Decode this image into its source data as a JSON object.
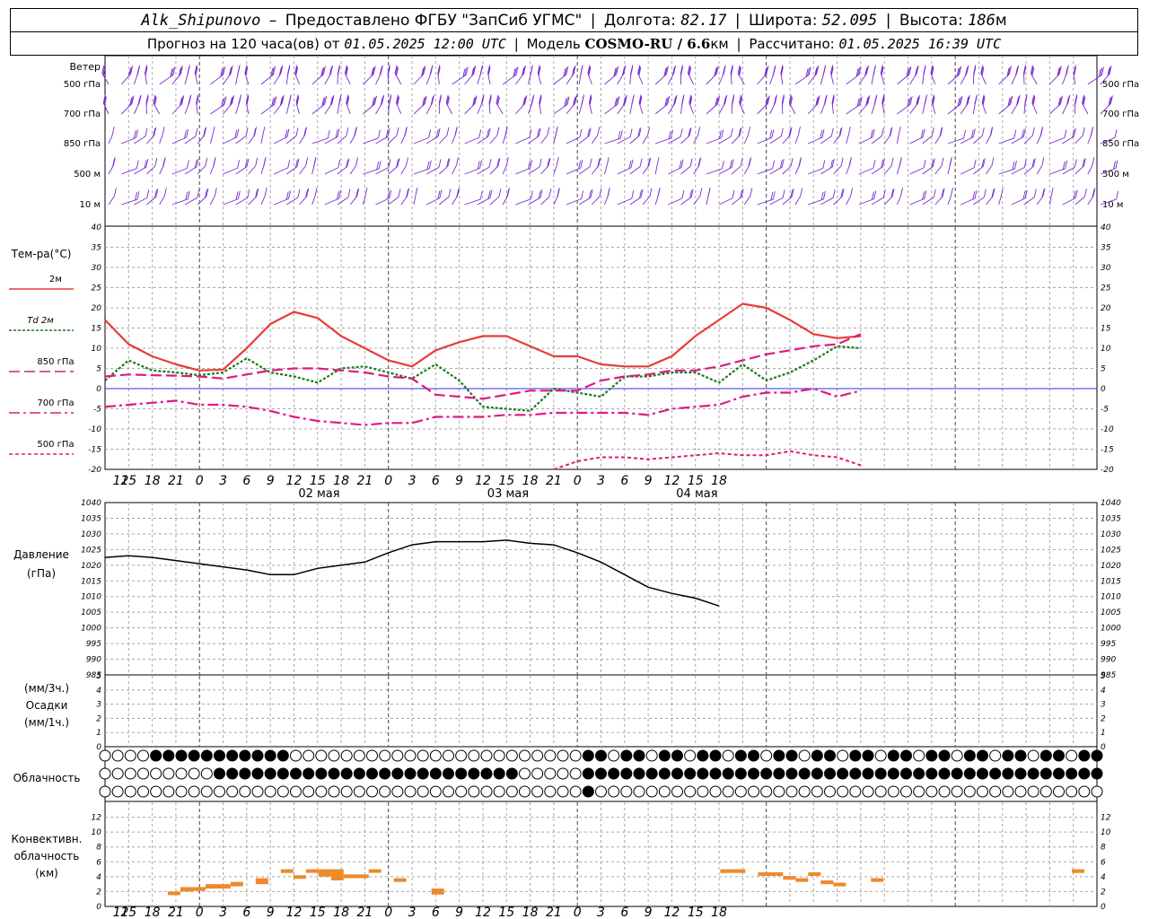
{
  "header": {
    "station": "Alk_Shipunovo",
    "provider": "Предоставлено ФГБУ \"ЗапСиб УГМС\"",
    "lon_label": "Долгота:",
    "lon_value": "82.17",
    "lat_label": "Широта:",
    "lat_value": "52.095",
    "alt_label": "Высота:",
    "alt_value": "186",
    "alt_unit": "м",
    "forecast_prefix": "Прогноз на 120 часа(ов) от",
    "forecast_time": "01.05.2025 12:00 UTC",
    "model_label": "Модель",
    "model_name": "COSMO-RU / 6.6",
    "model_unit": "км",
    "calc_label": "Рассчитано:",
    "calc_time": "01.05.2025 16:39 UTC"
  },
  "colors": {
    "wind": "#7a2ad1",
    "t2m": "#e83c3c",
    "td2m": "#1a7a1a",
    "t850": "#e01a80",
    "t700": "#e01a80",
    "t500": "#e01a80",
    "zero_line": "#3030e0",
    "pressure": "#000000",
    "convective": "#ee8a2a",
    "grid": "#a8a8a8"
  },
  "chart_data": [
    {
      "type": "wind_barbs",
      "panel_label": "Ветер",
      "levels": [
        "500 гПа",
        "700 гПа",
        "850 гПа",
        "500 м",
        "10  м"
      ]
    },
    {
      "type": "line",
      "panel_label": "Тем-ра(°C)",
      "x_hours": [
        0,
        3,
        6,
        9,
        12,
        15,
        18,
        21,
        24,
        27,
        30,
        33,
        36,
        39,
        42,
        45,
        48,
        51,
        54,
        57,
        60,
        63,
        66,
        69,
        72,
        75,
        78,
        81,
        84,
        87,
        90,
        93,
        96,
        99,
        102,
        105,
        108,
        111,
        114,
        117,
        120,
        123,
        126
      ],
      "x_tick_labels": [
        "12",
        "15",
        "18",
        "21",
        "0",
        "3",
        "6",
        "9",
        "12",
        "15",
        "18",
        "21",
        "0",
        "3",
        "6",
        "9",
        "12",
        "15",
        "18",
        "21",
        "0",
        "3",
        "6",
        "9",
        "12",
        "15",
        "18"
      ],
      "date_labels": [
        {
          "hour": 24,
          "label": "02 мая"
        },
        {
          "hour": 48,
          "label": "03 мая"
        },
        {
          "hour": 72,
          "label": "04 мая"
        }
      ],
      "ylim": [
        -20,
        40
      ],
      "y_ticks": [
        -20,
        -15,
        -10,
        -5,
        0,
        5,
        10,
        15,
        20,
        25,
        30,
        35,
        40
      ],
      "series": [
        {
          "name": "2м",
          "style": "solid",
          "values": [
            17,
            11,
            8,
            6,
            4.5,
            4.7,
            10,
            16,
            19,
            17.5,
            13,
            10,
            7,
            5.5,
            9.5,
            11.5,
            13,
            13,
            10.5,
            8,
            8,
            6,
            5.5,
            5.5,
            8,
            13,
            17,
            21,
            20,
            17,
            13.5,
            12.5,
            13,
            null,
            null,
            null,
            null,
            null,
            null,
            null,
            null,
            null,
            null
          ]
        },
        {
          "name": "Td  2м",
          "style": "dotted",
          "values": [
            2,
            7,
            4.5,
            4,
            3.3,
            4,
            7.5,
            4,
            3,
            1.5,
            5,
            5.5,
            4,
            2.5,
            6,
            2,
            -4.5,
            -5,
            -5.5,
            0,
            -1,
            -2,
            3,
            3,
            4,
            4,
            1.5,
            6,
            2,
            4,
            7,
            10.5,
            10,
            null,
            null,
            null,
            null,
            null,
            null,
            null,
            null,
            null,
            null
          ]
        },
        {
          "name": "850 гПа",
          "style": "dash",
          "values": [
            3,
            3.5,
            3.3,
            3.2,
            3,
            2.5,
            3.5,
            4.5,
            5,
            5,
            4.5,
            4,
            3,
            2.5,
            -1.5,
            -2,
            -2.5,
            -1.5,
            -0.5,
            -0.5,
            -0.5,
            2,
            3,
            3.5,
            4.5,
            4.5,
            5.5,
            7,
            8.5,
            9.5,
            10.5,
            11,
            13.5,
            null,
            null,
            null,
            null,
            null,
            null,
            null,
            null,
            null,
            null
          ]
        },
        {
          "name": "700 гПа",
          "style": "dashdot",
          "values": [
            -4.5,
            -4,
            -3.5,
            -3,
            -4,
            -4,
            -4.5,
            -5.5,
            -7,
            -8,
            -8.5,
            -9,
            -8.5,
            -8.5,
            -7,
            -7,
            -7,
            -6.5,
            -6.5,
            -6,
            -6,
            -6,
            -6,
            -6.5,
            -5,
            -4.5,
            -4,
            -2,
            -1,
            -1,
            0,
            -2,
            -0.5,
            null,
            null,
            null,
            null,
            null,
            null,
            null,
            null,
            null,
            null
          ]
        },
        {
          "name": "500 гПа",
          "style": "shortdash",
          "values": [
            null,
            null,
            null,
            null,
            null,
            null,
            null,
            null,
            null,
            null,
            null,
            null,
            null,
            null,
            null,
            null,
            null,
            null,
            null,
            -20,
            -18,
            -17,
            -17,
            -17.5,
            -17,
            -16.5,
            -16,
            -16.5,
            -16.5,
            -15.5,
            -16.5,
            -17,
            -19,
            null,
            null,
            null,
            null,
            null,
            null,
            null,
            null,
            null,
            null
          ]
        }
      ]
    },
    {
      "type": "line",
      "panel_label": "Давление",
      "panel_unit": "(гПа)",
      "ylim": [
        985,
        1040
      ],
      "y_ticks": [
        985,
        990,
        995,
        1000,
        1005,
        1010,
        1015,
        1020,
        1025,
        1030,
        1035,
        1040
      ],
      "series": [
        {
          "name": "",
          "values": [
            1022.5,
            1023,
            1022.5,
            1021.5,
            1020.5,
            1019.5,
            1018.5,
            1017,
            1017,
            1019,
            1020,
            1021,
            1024,
            1026.5,
            1027.5,
            1027.5,
            1027.5,
            1028,
            1027,
            1026.5,
            1024,
            1021,
            1017,
            1013,
            1011,
            1009.5,
            1007
          ]
        }
      ],
      "x_hours_pressure": [
        0,
        3,
        6,
        9,
        12,
        15,
        18,
        21,
        24,
        27,
        30,
        33,
        36,
        39,
        42,
        45,
        48,
        51,
        54,
        57,
        60,
        63,
        66,
        69,
        72,
        75,
        78
      ]
    },
    {
      "type": "bar",
      "panel_label": "Осадки",
      "panel_units": [
        "(мм/3ч.)",
        "(мм/1ч.)"
      ],
      "ylim": [
        0,
        5
      ],
      "y_ticks": [
        0,
        1,
        2,
        3,
        4,
        5
      ],
      "values": []
    },
    {
      "type": "table",
      "panel_label": "Облачность",
      "rows": 3,
      "columns": 79
    },
    {
      "type": "bar",
      "panel_label": "Конвективн.",
      "panel_label2": "облачность",
      "panel_unit": "(км)",
      "ylim": [
        0,
        14
      ],
      "y_ticks": [
        0,
        2,
        4,
        6,
        8,
        10,
        12
      ],
      "segments": [
        {
          "start": 5,
          "end": 6,
          "base": 1.7,
          "top": 2.0
        },
        {
          "start": 6,
          "end": 7,
          "base": 2.0,
          "top": 2.6
        },
        {
          "start": 7,
          "end": 8,
          "base": 2.1,
          "top": 2.6
        },
        {
          "start": 8,
          "end": 10,
          "base": 2.4,
          "top": 3.0
        },
        {
          "start": 10,
          "end": 11,
          "base": 2.7,
          "top": 3.3
        },
        {
          "start": 12,
          "end": 13,
          "base": 3.0,
          "top": 3.8
        },
        {
          "start": 14,
          "end": 15,
          "base": 4.5,
          "top": 5.0
        },
        {
          "start": 15,
          "end": 16,
          "base": 3.8,
          "top": 4.2
        },
        {
          "start": 16,
          "end": 17,
          "base": 4.6,
          "top": 5.0
        },
        {
          "start": 17,
          "end": 18,
          "base": 4.0,
          "top": 5.0
        },
        {
          "start": 18,
          "end": 19,
          "base": 3.5,
          "top": 5.0
        },
        {
          "start": 19,
          "end": 21,
          "base": 3.8,
          "top": 4.3
        },
        {
          "start": 21,
          "end": 22,
          "base": 4.6,
          "top": 5.0
        },
        {
          "start": 23,
          "end": 24,
          "base": 3.3,
          "top": 3.8
        },
        {
          "start": 26,
          "end": 27,
          "base": 1.6,
          "top": 2.4
        },
        {
          "start": 49,
          "end": 51,
          "base": 4.5,
          "top": 5.0
        },
        {
          "start": 52,
          "end": 54,
          "base": 4.1,
          "top": 4.6
        },
        {
          "start": 54,
          "end": 55,
          "base": 3.6,
          "top": 4.1
        },
        {
          "start": 55,
          "end": 56,
          "base": 3.3,
          "top": 3.8
        },
        {
          "start": 56,
          "end": 57,
          "base": 4.1,
          "top": 4.6
        },
        {
          "start": 57,
          "end": 58,
          "base": 3.0,
          "top": 3.5
        },
        {
          "start": 58,
          "end": 59,
          "base": 2.7,
          "top": 3.2
        },
        {
          "start": 61,
          "end": 62,
          "base": 3.3,
          "top": 3.8
        },
        {
          "start": 77,
          "end": 78,
          "base": 4.5,
          "top": 5.0
        }
      ]
    }
  ]
}
